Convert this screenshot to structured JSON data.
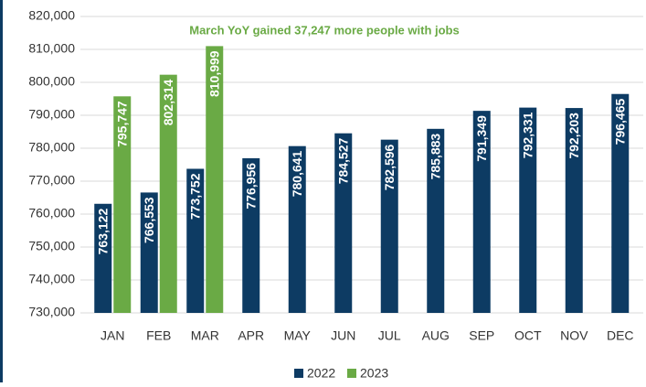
{
  "chart_data": {
    "type": "bar",
    "annotation": "March YoY gained 37,247 more people with jobs",
    "categories": [
      "JAN",
      "FEB",
      "MAR",
      "APR",
      "MAY",
      "JUN",
      "JUL",
      "AUG",
      "SEP",
      "OCT",
      "NOV",
      "DEC"
    ],
    "series": [
      {
        "name": "2022",
        "color": "#0d3b63",
        "values": [
          763122,
          766553,
          773752,
          776956,
          780641,
          784527,
          782596,
          785883,
          791349,
          792331,
          792203,
          796465
        ],
        "value_labels": [
          "763,122",
          "766,553",
          "773,752",
          "776,956",
          "780,641",
          "784,527",
          "782,596",
          "785,883",
          "791,349",
          "792,331",
          "792,203",
          "796,465"
        ]
      },
      {
        "name": "2023",
        "color": "#6aaa45",
        "values": [
          795747,
          802314,
          810999,
          null,
          null,
          null,
          null,
          null,
          null,
          null,
          null,
          null
        ],
        "value_labels": [
          "795,747",
          "802,314",
          "810,999",
          null,
          null,
          null,
          null,
          null,
          null,
          null,
          null,
          null
        ]
      }
    ],
    "ylim": [
      730000,
      820000
    ],
    "yticks": [
      {
        "value": 730000,
        "label": "730,000"
      },
      {
        "value": 740000,
        "label": "740,000"
      },
      {
        "value": 750000,
        "label": "750,000"
      },
      {
        "value": 760000,
        "label": "760,000"
      },
      {
        "value": 770000,
        "label": "770,000"
      },
      {
        "value": 780000,
        "label": "780,000"
      },
      {
        "value": 790000,
        "label": "790,000"
      },
      {
        "value": 800000,
        "label": "800,000"
      },
      {
        "value": 810000,
        "label": "810,000"
      },
      {
        "value": 820000,
        "label": "820,000"
      }
    ],
    "grid": true,
    "legend": "bottom"
  }
}
